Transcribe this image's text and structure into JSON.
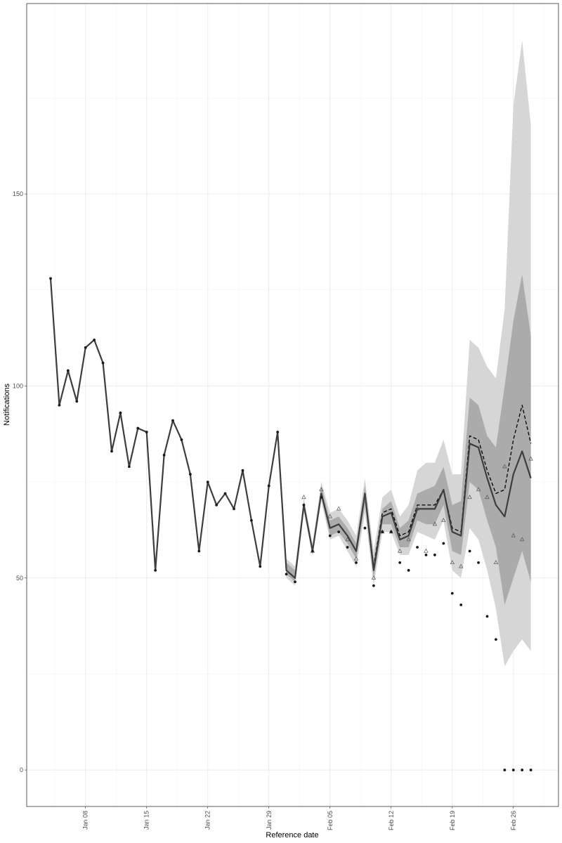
{
  "chart_data": {
    "type": "line",
    "xlabel": "Reference date",
    "ylabel": "Notifications",
    "categories": [
      null,
      null,
      null,
      null,
      "Jan 08",
      null,
      null,
      null,
      null,
      null,
      null,
      "Jan 15",
      null,
      null,
      null,
      null,
      null,
      null,
      "Jan 22",
      null,
      null,
      null,
      null,
      null,
      null,
      "Jan 29",
      null,
      null,
      null,
      null,
      null,
      null,
      "Feb 05",
      null,
      null,
      null,
      null,
      null,
      null,
      "Feb 12",
      null,
      null,
      null,
      null,
      null,
      null,
      "Feb 19",
      null,
      null,
      null,
      null,
      null,
      null,
      "Feb 26",
      null,
      null
    ],
    "ylim": [
      -9.5,
      199.6
    ],
    "yticks": [
      0,
      50,
      100,
      150
    ],
    "yminorticks": [
      25,
      75,
      125,
      175
    ],
    "grid": true,
    "series": [
      {
        "kind": "band",
        "color": "#d6d6d6",
        "lower": [
          null,
          null,
          null,
          null,
          null,
          null,
          null,
          null,
          null,
          null,
          null,
          null,
          null,
          null,
          null,
          null,
          null,
          null,
          null,
          null,
          null,
          null,
          null,
          null,
          null,
          null,
          86,
          50,
          48,
          67,
          56,
          70,
          60,
          61,
          57,
          53,
          67,
          48,
          62,
          62,
          56,
          56,
          62,
          61,
          60,
          65,
          52,
          50,
          63,
          60,
          52,
          42,
          27,
          31,
          34,
          31
        ],
        "upper": [
          null,
          null,
          null,
          null,
          null,
          null,
          null,
          null,
          null,
          null,
          null,
          null,
          null,
          null,
          null,
          null,
          null,
          null,
          null,
          null,
          null,
          null,
          null,
          null,
          null,
          null,
          90,
          55,
          53,
          71,
          59,
          75,
          67,
          68,
          65,
          61,
          76,
          57,
          71,
          73,
          66,
          69,
          78,
          80,
          80,
          86,
          77,
          77,
          112,
          110,
          105,
          102,
          120,
          173,
          190,
          168
        ]
      },
      {
        "kind": "band",
        "color": "#ababab",
        "lower": [
          null,
          null,
          null,
          null,
          null,
          null,
          null,
          null,
          null,
          null,
          null,
          null,
          null,
          null,
          null,
          null,
          null,
          null,
          null,
          null,
          null,
          null,
          null,
          null,
          null,
          null,
          87,
          51,
          49,
          68,
          56,
          71,
          61,
          62,
          59,
          55,
          69,
          50,
          64,
          64,
          58,
          58,
          65,
          64,
          64,
          69,
          57,
          56,
          75,
          73,
          65,
          58,
          43,
          50,
          57,
          49
        ],
        "upper": [
          null,
          null,
          null,
          null,
          null,
          null,
          null,
          null,
          null,
          null,
          null,
          null,
          null,
          null,
          null,
          null,
          null,
          null,
          null,
          null,
          null,
          null,
          null,
          null,
          null,
          null,
          89,
          54,
          52,
          70,
          58,
          74,
          65,
          66,
          63,
          59,
          74,
          55,
          68,
          70,
          63,
          65,
          72,
          73,
          74,
          79,
          69,
          70,
          97,
          95,
          87,
          84,
          100,
          117,
          129,
          113
        ]
      },
      {
        "kind": "line",
        "color": "#000000",
        "dash": true,
        "values": [
          128,
          95,
          104,
          96,
          110,
          112,
          106,
          83,
          93,
          79,
          89,
          88,
          52,
          82,
          91,
          86,
          77,
          57,
          75,
          69,
          72,
          68,
          78,
          65,
          53,
          74,
          88,
          52,
          50,
          69,
          57,
          72,
          63,
          64,
          61,
          57,
          72,
          53,
          67,
          68,
          61,
          62,
          69,
          69,
          69,
          73,
          63,
          62,
          87,
          86,
          78,
          72,
          73,
          86,
          95,
          85
        ]
      },
      {
        "kind": "line",
        "color": "#3d3d3d",
        "dash": false,
        "values": [
          128,
          95,
          104,
          96,
          110,
          112,
          106,
          83,
          93,
          79,
          89,
          88,
          52,
          82,
          91,
          86,
          77,
          57,
          75,
          69,
          72,
          68,
          78,
          65,
          53,
          74,
          88,
          52,
          50,
          69,
          57,
          72,
          63,
          64,
          61,
          57,
          72,
          52,
          66,
          67,
          60,
          61,
          68,
          68,
          68,
          73,
          62,
          61,
          85,
          84,
          76,
          69,
          66,
          77,
          83,
          76
        ]
      },
      {
        "kind": "triangle",
        "color": "#555555",
        "values": [
          null,
          null,
          null,
          null,
          null,
          null,
          null,
          null,
          null,
          null,
          null,
          null,
          null,
          null,
          null,
          null,
          null,
          null,
          null,
          null,
          null,
          null,
          null,
          null,
          null,
          null,
          null,
          null,
          null,
          71,
          57,
          73,
          66,
          68,
          60,
          55,
          70,
          50,
          62,
          62,
          57,
          60,
          68,
          57,
          64,
          65,
          54,
          53,
          71,
          73,
          71,
          54,
          79,
          61,
          60,
          81
        ]
      },
      {
        "kind": "point",
        "color": "#1a1a1a",
        "values": [
          128,
          95,
          104,
          96,
          110,
          112,
          106,
          83,
          93,
          79,
          89,
          88,
          52,
          82,
          91,
          86,
          77,
          57,
          75,
          69,
          72,
          68,
          78,
          65,
          53,
          74,
          88,
          51,
          49,
          69,
          57,
          71,
          61,
          62,
          58,
          54,
          63,
          48,
          62,
          62,
          54,
          52,
          58,
          56,
          56,
          59,
          46,
          43,
          57,
          54,
          40,
          34,
          0,
          0,
          0,
          0
        ]
      }
    ]
  }
}
